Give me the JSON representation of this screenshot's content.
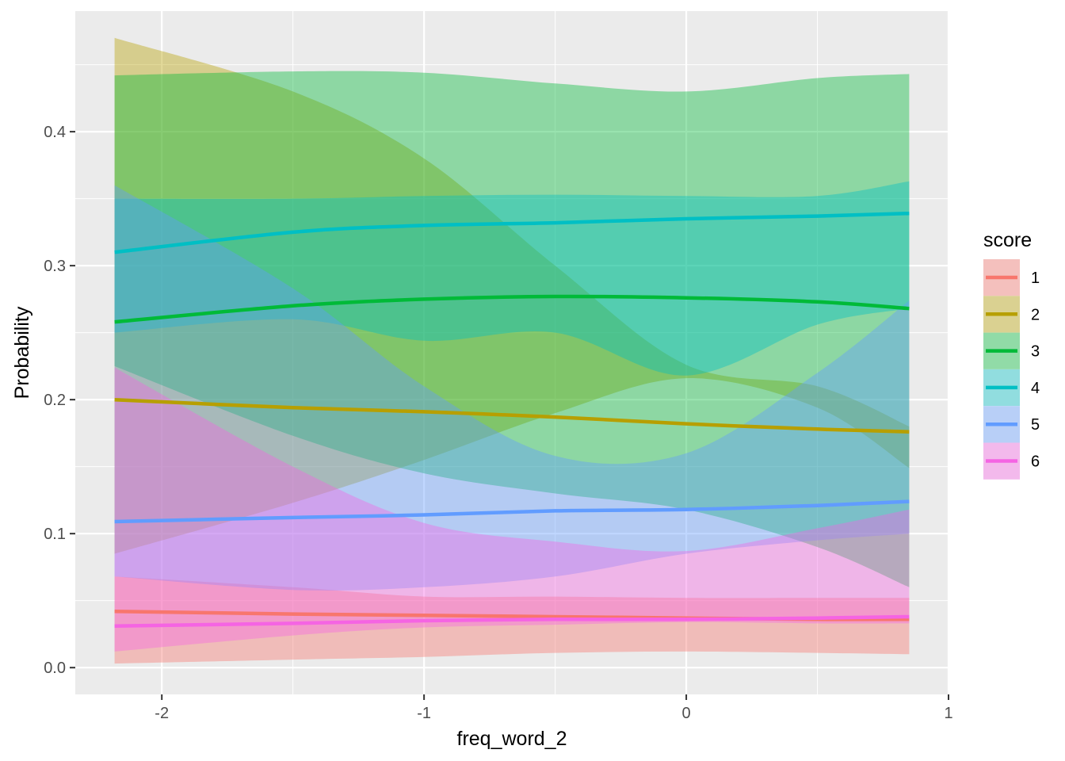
{
  "chart_data": {
    "type": "line",
    "xlabel": "freq_word_2",
    "ylabel": "Probability",
    "xlim": [
      -2.33,
      1.0
    ],
    "ylim": [
      -0.02,
      0.49
    ],
    "x_ticks": [
      "-2",
      "-1",
      "0",
      "1"
    ],
    "x_tick_values": [
      -2,
      -1,
      0,
      1
    ],
    "y_ticks": [
      "0.0",
      "0.1",
      "0.2",
      "0.3",
      "0.4"
    ],
    "y_tick_values": [
      0.0,
      0.1,
      0.2,
      0.3,
      0.4
    ],
    "grid": true,
    "legend": {
      "title": "score",
      "position": "right"
    },
    "x": [
      -2.18,
      -1.5,
      -1.0,
      -0.5,
      0.0,
      0.5,
      0.85
    ],
    "series": [
      {
        "name": "1",
        "color": "#F8766D",
        "mean": [
          0.042,
          0.04,
          0.039,
          0.038,
          0.037,
          0.036,
          0.036
        ],
        "lower": [
          0.003,
          0.006,
          0.008,
          0.011,
          0.012,
          0.011,
          0.01
        ],
        "upper": [
          0.068,
          0.06,
          0.053,
          0.053,
          0.052,
          0.052,
          0.052
        ]
      },
      {
        "name": "2",
        "color": "#B79F00",
        "mean": [
          0.2,
          0.194,
          0.191,
          0.187,
          0.182,
          0.178,
          0.176
        ],
        "lower": [
          0.085,
          0.123,
          0.155,
          0.19,
          0.216,
          0.194,
          0.149
        ],
        "upper": [
          0.47,
          0.43,
          0.38,
          0.3,
          0.226,
          0.21,
          0.18
        ]
      },
      {
        "name": "3",
        "color": "#00BA38",
        "mean": [
          0.258,
          0.27,
          0.275,
          0.277,
          0.276,
          0.273,
          0.268
        ],
        "lower": [
          0.225,
          0.173,
          0.145,
          0.13,
          0.118,
          0.09,
          0.06
        ],
        "upper": [
          0.442,
          0.445,
          0.444,
          0.436,
          0.43,
          0.44,
          0.443
        ]
      },
      {
        "name": "4",
        "color": "#00BFC4",
        "mean": [
          0.31,
          0.325,
          0.33,
          0.332,
          0.335,
          0.337,
          0.339
        ],
        "lower": [
          0.25,
          0.26,
          0.244,
          0.25,
          0.218,
          0.256,
          0.268
        ],
        "upper": [
          0.35,
          0.35,
          0.352,
          0.353,
          0.352,
          0.352,
          0.363
        ]
      },
      {
        "name": "5",
        "color": "#619CFF",
        "mean": [
          0.109,
          0.112,
          0.114,
          0.117,
          0.118,
          0.121,
          0.124
        ],
        "lower": [
          0.068,
          0.058,
          0.06,
          0.068,
          0.085,
          0.095,
          0.1
        ],
        "upper": [
          0.36,
          0.283,
          0.21,
          0.158,
          0.16,
          0.22,
          0.274
        ]
      },
      {
        "name": "6",
        "color": "#F564E3",
        "mean": [
          0.031,
          0.033,
          0.035,
          0.036,
          0.036,
          0.037,
          0.038
        ],
        "lower": [
          0.012,
          0.024,
          0.03,
          0.032,
          0.034,
          0.033,
          0.033
        ],
        "upper": [
          0.224,
          0.15,
          0.108,
          0.094,
          0.087,
          0.104,
          0.118
        ]
      }
    ]
  }
}
